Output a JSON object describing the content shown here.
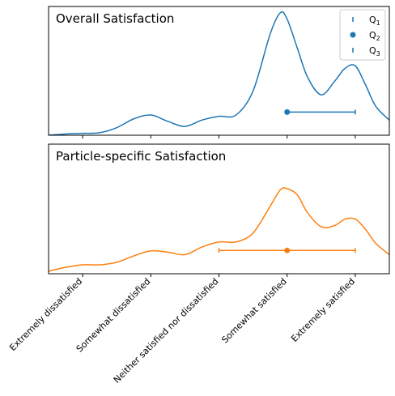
{
  "chart_data": {
    "type": "density",
    "categories": [
      "Extremely dissatisfied",
      "Somewhat dissatisfied",
      "Neither satisfied nor dissatisfied",
      "Somewhat satisfied",
      "Extremely satisfied"
    ],
    "xlim": [
      0.5,
      5.5
    ],
    "legend": {
      "placement": "top-right",
      "entries": [
        {
          "key": "q1",
          "base": "Q",
          "sub": "1"
        },
        {
          "key": "q2",
          "base": "Q",
          "sub": "2"
        },
        {
          "key": "q3",
          "base": "Q",
          "sub": "3"
        }
      ]
    },
    "panels": [
      {
        "title": "Overall Satisfaction",
        "color": "#1f77b4",
        "ylim": [
          0,
          1.02
        ],
        "density": {
          "x": [
            0.5,
            0.75,
            1.0,
            1.25,
            1.5,
            1.75,
            2.0,
            2.25,
            2.5,
            2.75,
            3.0,
            3.25,
            3.5,
            3.75,
            3.9,
            4.0,
            4.15,
            4.3,
            4.5,
            4.7,
            4.85,
            5.0,
            5.15,
            5.3,
            5.5
          ],
          "y": [
            0.0,
            0.01,
            0.015,
            0.02,
            0.06,
            0.13,
            0.16,
            0.11,
            0.07,
            0.12,
            0.15,
            0.16,
            0.35,
            0.8,
            0.97,
            0.92,
            0.69,
            0.46,
            0.32,
            0.43,
            0.53,
            0.55,
            0.4,
            0.23,
            0.12
          ]
        },
        "quartiles": {
          "q1": 4,
          "median": 4,
          "q3": 5
        },
        "show_legend": true
      },
      {
        "title": "Particle-specific Satisfaction",
        "color": "#ff7f0e",
        "ylim": [
          0,
          1.02
        ],
        "density": {
          "x": [
            0.5,
            0.75,
            1.0,
            1.25,
            1.5,
            1.75,
            2.0,
            2.25,
            2.5,
            2.75,
            3.0,
            3.25,
            3.5,
            3.75,
            3.9,
            4.0,
            4.15,
            4.3,
            4.5,
            4.7,
            4.85,
            5.0,
            5.15,
            5.3,
            5.5
          ],
          "y": [
            0.02,
            0.05,
            0.07,
            0.07,
            0.09,
            0.14,
            0.18,
            0.17,
            0.15,
            0.21,
            0.25,
            0.25,
            0.32,
            0.53,
            0.66,
            0.67,
            0.62,
            0.48,
            0.37,
            0.38,
            0.43,
            0.43,
            0.35,
            0.24,
            0.15
          ]
        },
        "quartiles": {
          "q1": 3,
          "median": 4,
          "q3": 5
        },
        "show_legend": false
      }
    ]
  }
}
